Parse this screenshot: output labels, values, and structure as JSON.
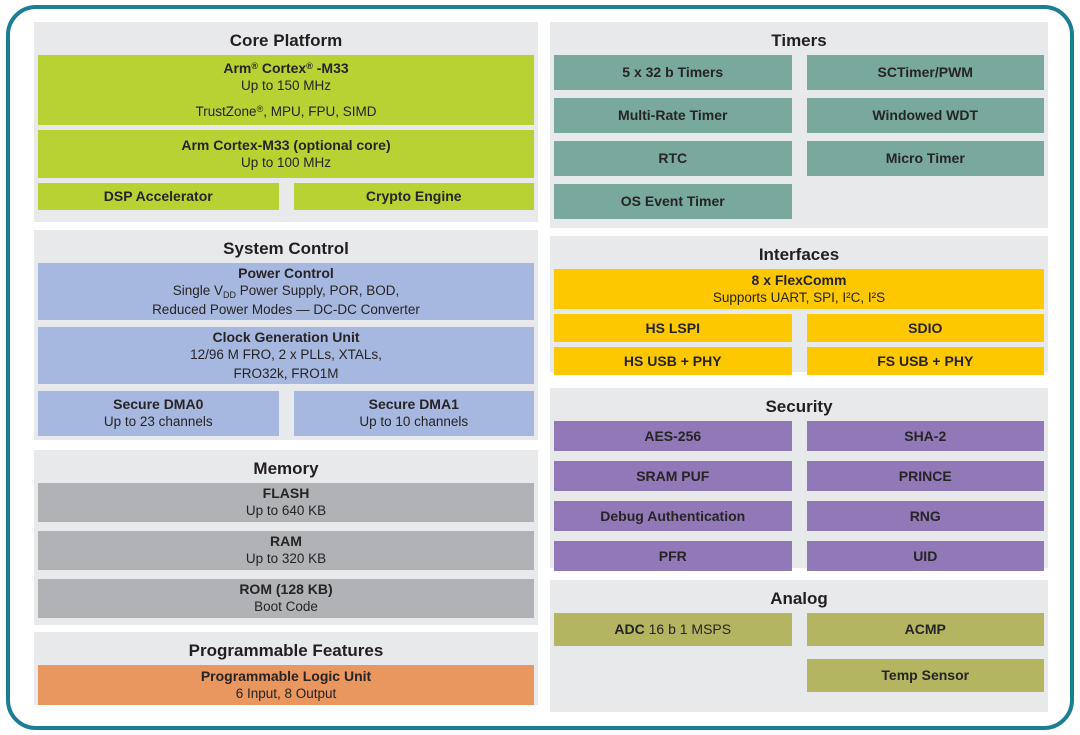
{
  "palette": {
    "border": "#1b7e96",
    "panel": "#e8e9ea",
    "green": "#b8d234",
    "blue": "#a7b8e0",
    "gray": "#b0b2b5",
    "orange": "#e9965f",
    "teal": "#79a89d",
    "yellow": "#fdc800",
    "purple": "#9079b6",
    "olive": "#b4b560"
  },
  "columns": {
    "left": [
      {
        "id": "core-platform",
        "title": "Core Platform",
        "color": "green",
        "rows": [
          [
            {
              "name": "arm-cortex-m33",
              "title": [
                {
                  "t": "Arm"
                },
                {
                  "t": "®",
                  "sup": true
                },
                {
                  "t": " Cortex"
                },
                {
                  "t": "®",
                  "sup": true
                },
                {
                  "t": " -M33"
                }
              ],
              "lines": [
                "Up to 150 MHz",
                [
                  {
                    "t": "TrustZone"
                  },
                  {
                    "t": "®",
                    "sup": true
                  },
                  {
                    "t": ", MPU, FPU, SIMD"
                  }
                ]
              ]
            }
          ],
          [
            {
              "name": "arm-cortex-m33-optional",
              "title": "Arm Cortex-M33 (optional core)",
              "lines": [
                "Up to 100 MHz"
              ]
            }
          ],
          [
            {
              "name": "dsp-accelerator",
              "title": "DSP Accelerator"
            },
            {
              "name": "crypto-engine",
              "title": "Crypto Engine"
            }
          ]
        ]
      },
      {
        "id": "system-control",
        "title": "System Control",
        "color": "blue",
        "rows": [
          [
            {
              "name": "power-control",
              "title": "Power Control",
              "lines": [
                [
                  {
                    "t": "Single V"
                  },
                  {
                    "t": "DD",
                    "subs": true
                  },
                  {
                    "t": " Power Supply, POR, BOD,"
                  }
                ],
                "Reduced Power Modes — DC-DC Converter"
              ]
            }
          ],
          [
            {
              "name": "clock-generation-unit",
              "title": "Clock Generation Unit",
              "lines": [
                "12/96 M FRO, 2 x PLLs, XTALs,",
                "FRO32k, FRO1M"
              ]
            }
          ],
          [
            {
              "name": "secure-dma0",
              "title": "Secure DMA0",
              "lines": [
                "Up to 23 channels"
              ]
            },
            {
              "name": "secure-dma1",
              "title": "Secure DMA1",
              "lines": [
                "Up to 10 channels"
              ]
            }
          ]
        ]
      },
      {
        "id": "memory",
        "title": "Memory",
        "color": "gray",
        "rows": [
          [
            {
              "name": "flash",
              "title": "FLASH",
              "lines": [
                "Up to 640 KB"
              ]
            }
          ],
          [
            {
              "name": "ram",
              "title": "RAM",
              "lines": [
                "Up to 320 KB"
              ]
            }
          ],
          [
            {
              "name": "rom",
              "title": "ROM (128 KB)",
              "lines": [
                "Boot Code"
              ]
            }
          ]
        ]
      },
      {
        "id": "programmable-features",
        "title": "Programmable Features",
        "color": "orange",
        "rows": [
          [
            {
              "name": "programmable-logic-unit",
              "title": "Programmable Logic Unit",
              "lines": [
                "6 Input, 8 Output"
              ]
            }
          ]
        ]
      }
    ],
    "right": [
      {
        "id": "timers",
        "title": "Timers",
        "color": "teal",
        "rows": [
          [
            {
              "name": "5x32b-timers",
              "title": "5 x 32 b Timers"
            },
            {
              "name": "sctimer-pwm",
              "title": "SCTimer/PWM"
            }
          ],
          [
            {
              "name": "multi-rate-timer",
              "title": "Multi-Rate Timer"
            },
            {
              "name": "windowed-wdt",
              "title": "Windowed WDT"
            }
          ],
          [
            {
              "name": "rtc",
              "title": "RTC"
            },
            {
              "name": "micro-timer",
              "title": "Micro Timer"
            }
          ],
          [
            {
              "name": "os-event-timer",
              "title": "OS Event Timer"
            },
            {
              "empty": true
            }
          ]
        ]
      },
      {
        "id": "interfaces",
        "title": "Interfaces",
        "color": "yellow",
        "rows": [
          [
            {
              "name": "flexcomm",
              "title": "8 x FlexComm",
              "lines": [
                "Supports UART, SPI, I²C, I²S"
              ]
            }
          ],
          [
            {
              "name": "hs-lspi",
              "title": "HS LSPI"
            },
            {
              "name": "sdio",
              "title": "SDIO"
            }
          ],
          [
            {
              "name": "hs-usb-phy",
              "title": "HS USB + PHY"
            },
            {
              "name": "fs-usb-phy",
              "title": "FS USB + PHY"
            }
          ]
        ]
      },
      {
        "id": "security",
        "title": "Security",
        "color": "purple",
        "rows": [
          [
            {
              "name": "aes-256",
              "title": "AES-256"
            },
            {
              "name": "sha-2",
              "title": "SHA-2"
            }
          ],
          [
            {
              "name": "sram-puf",
              "title": "SRAM PUF"
            },
            {
              "name": "prince",
              "title": "PRINCE"
            }
          ],
          [
            {
              "name": "debug-authentication",
              "title": "Debug Authentication"
            },
            {
              "name": "rng",
              "title": "RNG"
            }
          ],
          [
            {
              "name": "pfr",
              "title": "PFR"
            },
            {
              "name": "uid",
              "title": "UID"
            }
          ]
        ]
      },
      {
        "id": "analog",
        "title": "Analog",
        "color": "olive",
        "rows": [
          [
            {
              "name": "adc",
              "title": [
                {
                  "t": "ADC",
                  "b": true
                },
                {
                  "t": " 16 b 1 MSPS",
                  "reg": true
                }
              ]
            },
            {
              "name": "acmp",
              "title": "ACMP"
            }
          ],
          [
            {
              "empty": true
            },
            {
              "name": "temp-sensor",
              "title": "Temp Sensor"
            }
          ]
        ]
      }
    ]
  }
}
